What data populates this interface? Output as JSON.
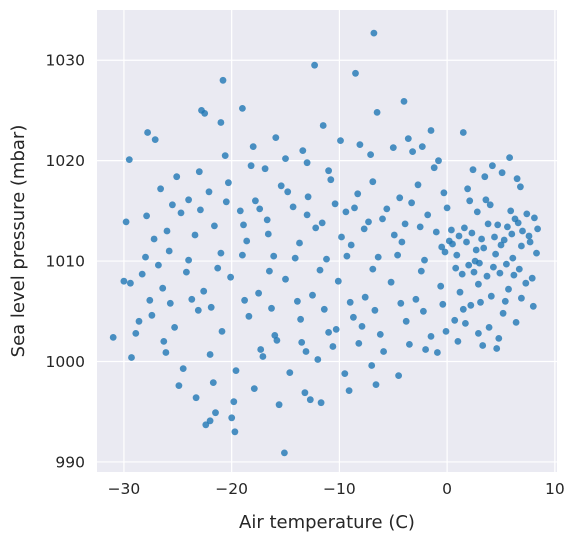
{
  "chart_data": {
    "type": "scatter",
    "title": "",
    "xlabel": "Air temperature (C)",
    "ylabel": "Sea level pressure (mbar)",
    "xlim": [
      -32.5,
      10.2
    ],
    "ylim": [
      989,
      1035
    ],
    "xticks": [
      -30,
      -20,
      -10,
      0,
      10
    ],
    "yticks": [
      990,
      1000,
      1010,
      1020,
      1030
    ],
    "grid": true,
    "legend": "none",
    "point_color": "#1f77b4",
    "background_color": "#eaeaf2",
    "grid_color": "#ffffff",
    "series": [
      {
        "points": [
          [
            -6.8,
            1032.7
          ],
          [
            -12.3,
            1029.5
          ],
          [
            -20.8,
            1028.0
          ],
          [
            -8.5,
            1028.7
          ],
          [
            -19.0,
            1025.2
          ],
          [
            -4.0,
            1025.9
          ],
          [
            -6.5,
            1024.8
          ],
          [
            -22.8,
            1025.0
          ],
          [
            -22.5,
            1024.7
          ],
          [
            -27.8,
            1022.8
          ],
          [
            -27.1,
            1022.1
          ],
          [
            -21.0,
            1023.8
          ],
          [
            -11.5,
            1023.5
          ],
          [
            -1.5,
            1023.0
          ],
          [
            1.5,
            1022.8
          ],
          [
            -29.5,
            1020.1
          ],
          [
            -23.0,
            1018.9
          ],
          [
            -18.2,
            1019.5
          ],
          [
            -15.0,
            1020.2
          ],
          [
            -13.0,
            1019.8
          ],
          [
            -7.1,
            1020.6
          ],
          [
            -5.0,
            1021.3
          ],
          [
            -3.2,
            1020.9
          ],
          [
            -0.8,
            1020.0
          ],
          [
            4.2,
            1019.5
          ],
          [
            5.8,
            1020.3
          ],
          [
            -26.6,
            1017.2
          ],
          [
            -25.1,
            1018.4
          ],
          [
            -22.1,
            1016.9
          ],
          [
            -20.3,
            1017.8
          ],
          [
            -17.8,
            1016.0
          ],
          [
            -15.4,
            1017.5
          ],
          [
            -12.9,
            1016.4
          ],
          [
            -10.8,
            1018.1
          ],
          [
            -8.3,
            1016.7
          ],
          [
            -6.9,
            1017.9
          ],
          [
            -4.4,
            1016.3
          ],
          [
            -2.7,
            1017.6
          ],
          [
            -0.3,
            1016.8
          ],
          [
            1.9,
            1017.2
          ],
          [
            3.6,
            1016.1
          ],
          [
            6.8,
            1017.4
          ],
          [
            8.1,
            1014.3
          ],
          [
            -29.8,
            1013.9
          ],
          [
            -24.7,
            1014.8
          ],
          [
            -21.6,
            1013.5
          ],
          [
            -19.2,
            1015.0
          ],
          [
            -16.7,
            1014.1
          ],
          [
            -14.3,
            1015.4
          ],
          [
            -11.6,
            1013.8
          ],
          [
            -9.4,
            1014.9
          ],
          [
            -7.7,
            1013.2
          ],
          [
            -5.6,
            1015.2
          ],
          [
            -3.9,
            1013.7
          ],
          [
            -1.8,
            1014.6
          ],
          [
            0.4,
            1013.1
          ],
          [
            2.8,
            1014.9
          ],
          [
            4.7,
            1013.6
          ],
          [
            6.3,
            1014.2
          ],
          [
            7.6,
            1012.5
          ],
          [
            -27.2,
            1012.2
          ],
          [
            -25.8,
            1011.0
          ],
          [
            -23.4,
            1012.6
          ],
          [
            -21.0,
            1010.8
          ],
          [
            -18.6,
            1012.0
          ],
          [
            -16.1,
            1010.5
          ],
          [
            -13.7,
            1011.8
          ],
          [
            -11.2,
            1010.2
          ],
          [
            -8.9,
            1011.6
          ],
          [
            -6.4,
            1010.4
          ],
          [
            -4.2,
            1011.9
          ],
          [
            -2.1,
            1010.1
          ],
          [
            -0.5,
            1011.4
          ],
          [
            0.9,
            1010.6
          ],
          [
            1.8,
            1011.9
          ],
          [
            2.6,
            1010.0
          ],
          [
            3.4,
            1011.3
          ],
          [
            4.5,
            1010.7
          ],
          [
            5.3,
            1012.1
          ],
          [
            6.1,
            1010.3
          ],
          [
            6.9,
            1011.5
          ],
          [
            -31.0,
            1002.4
          ],
          [
            -29.4,
            1007.8
          ],
          [
            -28.3,
            1008.7
          ],
          [
            -26.4,
            1007.3
          ],
          [
            -24.2,
            1008.9
          ],
          [
            -22.6,
            1007.0
          ],
          [
            -20.1,
            1008.4
          ],
          [
            -17.5,
            1006.8
          ],
          [
            -15.0,
            1008.2
          ],
          [
            -12.5,
            1006.6
          ],
          [
            -10.1,
            1008.0
          ],
          [
            -7.6,
            1006.4
          ],
          [
            -5.2,
            1007.9
          ],
          [
            -2.9,
            1006.2
          ],
          [
            -0.6,
            1007.5
          ],
          [
            1.2,
            1006.9
          ],
          [
            2.9,
            1007.7
          ],
          [
            4.1,
            1006.5
          ],
          [
            5.7,
            1007.2
          ],
          [
            7.3,
            1007.8
          ],
          [
            8.0,
            1005.5
          ],
          [
            -28.9,
            1002.8
          ],
          [
            -27.4,
            1004.6
          ],
          [
            -25.3,
            1003.4
          ],
          [
            -23.1,
            1005.1
          ],
          [
            -20.9,
            1003.0
          ],
          [
            -18.4,
            1004.5
          ],
          [
            -16.0,
            1002.6
          ],
          [
            -13.6,
            1004.2
          ],
          [
            -11.0,
            1002.9
          ],
          [
            -8.7,
            1004.4
          ],
          [
            -6.2,
            1002.7
          ],
          [
            -3.8,
            1004.0
          ],
          [
            -1.5,
            1002.5
          ],
          [
            0.7,
            1004.1
          ],
          [
            2.2,
            1005.6
          ],
          [
            3.9,
            1003.4
          ],
          [
            5.2,
            1004.8
          ],
          [
            6.4,
            1003.9
          ],
          [
            -29.3,
            1000.4
          ],
          [
            -26.1,
            1000.9
          ],
          [
            -24.5,
            999.3
          ],
          [
            -22.0,
            1000.7
          ],
          [
            -19.6,
            999.1
          ],
          [
            -17.1,
            1000.5
          ],
          [
            -14.6,
            998.9
          ],
          [
            -12.0,
            1000.2
          ],
          [
            -9.5,
            998.8
          ],
          [
            -7.0,
            999.6
          ],
          [
            -4.5,
            998.6
          ],
          [
            -24.9,
            997.6
          ],
          [
            -23.3,
            996.4
          ],
          [
            -21.7,
            997.9
          ],
          [
            -19.8,
            996.0
          ],
          [
            -17.9,
            997.3
          ],
          [
            -15.6,
            995.7
          ],
          [
            -13.2,
            996.9
          ],
          [
            -11.7,
            995.9
          ],
          [
            -9.1,
            997.1
          ],
          [
            -6.6,
            997.7
          ],
          [
            -22.4,
            993.7
          ],
          [
            -21.5,
            994.9
          ],
          [
            -20.0,
            994.4
          ],
          [
            -19.7,
            993.0
          ],
          [
            -15.1,
            990.9
          ],
          [
            -22.0,
            994.1
          ],
          [
            -13.5,
            1001.9
          ],
          [
            -10.6,
            1001.5
          ],
          [
            -2.0,
            1001.2
          ],
          [
            1.0,
            1002.0
          ],
          [
            3.3,
            1001.6
          ],
          [
            4.6,
            1001.3
          ],
          [
            -18.9,
            1013.6
          ],
          [
            -16.6,
            1012.7
          ],
          [
            -12.2,
            1013.3
          ],
          [
            -9.8,
            1012.4
          ],
          [
            -7.3,
            1013.9
          ],
          [
            -4.9,
            1012.6
          ],
          [
            -2.5,
            1013.4
          ],
          [
            -1.0,
            1012.9
          ],
          [
            0.2,
            1012.0
          ],
          [
            0.8,
            1009.3
          ],
          [
            1.4,
            1008.7
          ],
          [
            2.0,
            1009.6
          ],
          [
            2.5,
            1008.9
          ],
          [
            3.0,
            1009.8
          ],
          [
            3.7,
            1008.5
          ],
          [
            4.3,
            1009.4
          ],
          [
            4.9,
            1008.8
          ],
          [
            5.5,
            1009.7
          ],
          [
            6.2,
            1008.6
          ],
          [
            6.7,
            1009.2
          ],
          [
            7.0,
            1013.0
          ],
          [
            7.4,
            1014.7
          ],
          [
            -0.2,
            1010.9
          ],
          [
            0.5,
            1011.7
          ],
          [
            1.1,
            1012.5
          ],
          [
            1.6,
            1013.3
          ],
          [
            2.3,
            1012.8
          ],
          [
            2.7,
            1011.1
          ],
          [
            3.2,
            1012.2
          ],
          [
            3.8,
            1013.7
          ],
          [
            4.4,
            1012.4
          ],
          [
            5.0,
            1011.6
          ],
          [
            5.6,
            1013.4
          ],
          [
            6.0,
            1012.7
          ],
          [
            6.6,
            1013.8
          ],
          [
            -25.5,
            1015.6
          ],
          [
            -20.5,
            1015.9
          ],
          [
            -14.8,
            1016.9
          ],
          [
            -10.4,
            1015.7
          ],
          [
            -3.3,
            1015.8
          ],
          [
            0.0,
            1015.3
          ],
          [
            2.1,
            1016.0
          ],
          [
            4.0,
            1015.6
          ],
          [
            5.9,
            1015.0
          ],
          [
            -28.0,
            1010.4
          ],
          [
            -26.8,
            1009.6
          ],
          [
            -24.0,
            1010.1
          ],
          [
            -21.3,
            1009.3
          ],
          [
            -19.0,
            1010.6
          ],
          [
            -16.5,
            1009.0
          ],
          [
            -14.1,
            1010.3
          ],
          [
            -11.8,
            1009.1
          ],
          [
            -9.3,
            1010.5
          ],
          [
            -6.9,
            1009.2
          ],
          [
            -4.6,
            1010.6
          ],
          [
            -2.4,
            1009.0
          ],
          [
            -23.7,
            1006.2
          ],
          [
            -21.9,
            1005.4
          ],
          [
            -18.8,
            1006.1
          ],
          [
            -16.3,
            1005.3
          ],
          [
            -13.9,
            1006.0
          ],
          [
            -11.4,
            1005.2
          ],
          [
            -9.0,
            1005.9
          ],
          [
            -6.7,
            1005.1
          ],
          [
            -4.3,
            1005.8
          ],
          [
            -2.2,
            1005.0
          ],
          [
            -0.4,
            1005.7
          ],
          [
            1.5,
            1005.2
          ],
          [
            3.1,
            1005.9
          ],
          [
            -17.3,
            1001.2
          ],
          [
            -15.8,
            1002.1
          ],
          [
            -13.1,
            1001.0
          ],
          [
            -8.2,
            1001.8
          ],
          [
            -5.9,
            1001.0
          ],
          [
            -3.5,
            1001.7
          ],
          [
            -0.9,
            1000.9
          ],
          [
            -26.3,
            1002.0
          ],
          [
            -25.7,
            1005.8
          ],
          [
            -27.6,
            1006.1
          ],
          [
            -20.6,
            1020.5
          ],
          [
            -18.0,
            1021.4
          ],
          [
            -15.9,
            1022.3
          ],
          [
            -13.4,
            1021.0
          ],
          [
            -9.9,
            1022.0
          ],
          [
            -8.1,
            1021.6
          ],
          [
            -3.6,
            1022.2
          ],
          [
            -2.3,
            1021.4
          ],
          [
            2.4,
            1019.1
          ],
          [
            3.5,
            1018.4
          ],
          [
            5.1,
            1018.8
          ],
          [
            6.5,
            1018.2
          ],
          [
            -1.2,
            1019.3
          ],
          [
            -11.0,
            1019.0
          ],
          [
            -16.9,
            1019.2
          ],
          [
            -24.0,
            1016.1
          ],
          [
            -27.9,
            1014.5
          ],
          [
            -30.0,
            1008.0
          ],
          [
            -28.6,
            1004.0
          ],
          [
            -12.7,
            996.2
          ],
          [
            -10.3,
            1003.2
          ],
          [
            -7.9,
            1003.5
          ],
          [
            -0.1,
            1003.0
          ],
          [
            1.7,
            1003.8
          ],
          [
            2.9,
            1002.8
          ],
          [
            4.8,
            1002.3
          ],
          [
            5.4,
            1006.0
          ],
          [
            6.9,
            1006.3
          ],
          [
            7.9,
            1008.3
          ],
          [
            8.3,
            1010.8
          ],
          [
            7.7,
            1011.9
          ],
          [
            8.4,
            1013.2
          ],
          [
            -6.0,
            1014.2
          ],
          [
            -8.6,
            1015.3
          ],
          [
            -13.0,
            1014.6
          ],
          [
            -17.4,
            1015.2
          ],
          [
            -22.9,
            1015.1
          ],
          [
            -26.0,
            1013.0
          ]
        ]
      }
    ]
  }
}
